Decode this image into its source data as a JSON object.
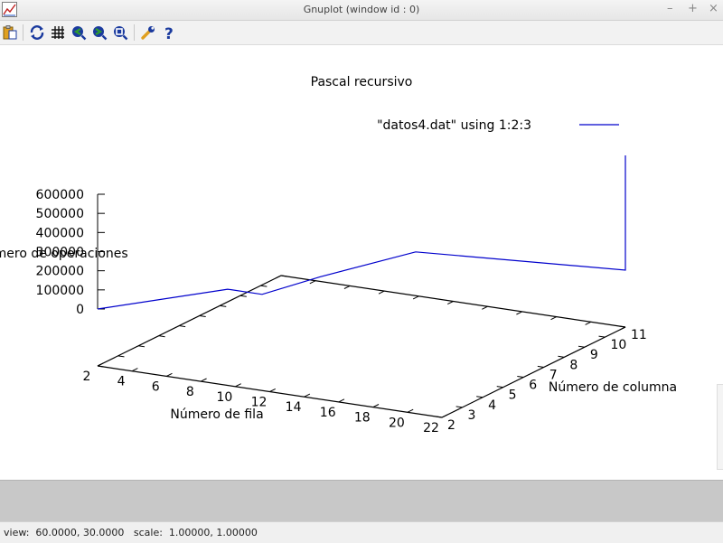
{
  "window": {
    "title": "Gnuplot (window id : 0)",
    "controls": {
      "minimize": "–",
      "maximize": "+",
      "close": "×"
    }
  },
  "toolbar": {
    "items": [
      {
        "name": "copy-to-clipboard",
        "icon": "clipboard-icon"
      },
      {
        "name": "replot",
        "icon": "refresh-icon"
      },
      {
        "name": "toggle-grid",
        "icon": "grid-icon"
      },
      {
        "name": "previous-zoom",
        "icon": "zoom-prev-icon"
      },
      {
        "name": "next-zoom",
        "icon": "zoom-next-icon"
      },
      {
        "name": "autoscale",
        "icon": "zoom-fit-icon"
      },
      {
        "name": "options",
        "icon": "wrench-icon"
      },
      {
        "name": "help",
        "icon": "question-icon"
      }
    ],
    "colors": {
      "primary": "#1a3a9e",
      "accent": "#2f9c2f",
      "highlight": "#e0a020"
    }
  },
  "status": {
    "text": "view:  60.0000, 30.0000   scale:  1.00000, 1.00000"
  },
  "chart_data": {
    "type": "line",
    "title": "Pascal recursivo",
    "xlabel": "Número de fila",
    "ylabel": "Número de columna",
    "zlabel": "Número de operaciones",
    "view": [
      60,
      30
    ],
    "xlim": [
      2,
      22
    ],
    "ylim": [
      2,
      11
    ],
    "zlim": [
      0,
      600000
    ],
    "xticks": [
      "2",
      "4",
      "6",
      "8",
      "10",
      "12",
      "14",
      "16",
      "18",
      "20",
      "22"
    ],
    "yticks": [
      "2",
      "3",
      "4",
      "5",
      "6",
      "7",
      "8",
      "9",
      "10",
      "11"
    ],
    "zticks": [
      "0",
      "100000",
      "200000",
      "300000",
      "400000",
      "500000",
      "600000"
    ],
    "series": [
      {
        "name": "\"datos4.dat\" using 1:2:3",
        "color": "#0000cc",
        "points": [
          {
            "x": 2,
            "y": 2,
            "z": 0
          },
          {
            "x": 6,
            "y": 5,
            "z": 0
          },
          {
            "x": 8,
            "y": 5,
            "z": 0
          },
          {
            "x": 9,
            "y": 7,
            "z": 0
          },
          {
            "x": 11,
            "y": 10,
            "z": 0
          },
          {
            "x": 22,
            "y": 11,
            "z": 0
          },
          {
            "x": 22,
            "y": 11,
            "z": 600000
          }
        ]
      }
    ]
  }
}
